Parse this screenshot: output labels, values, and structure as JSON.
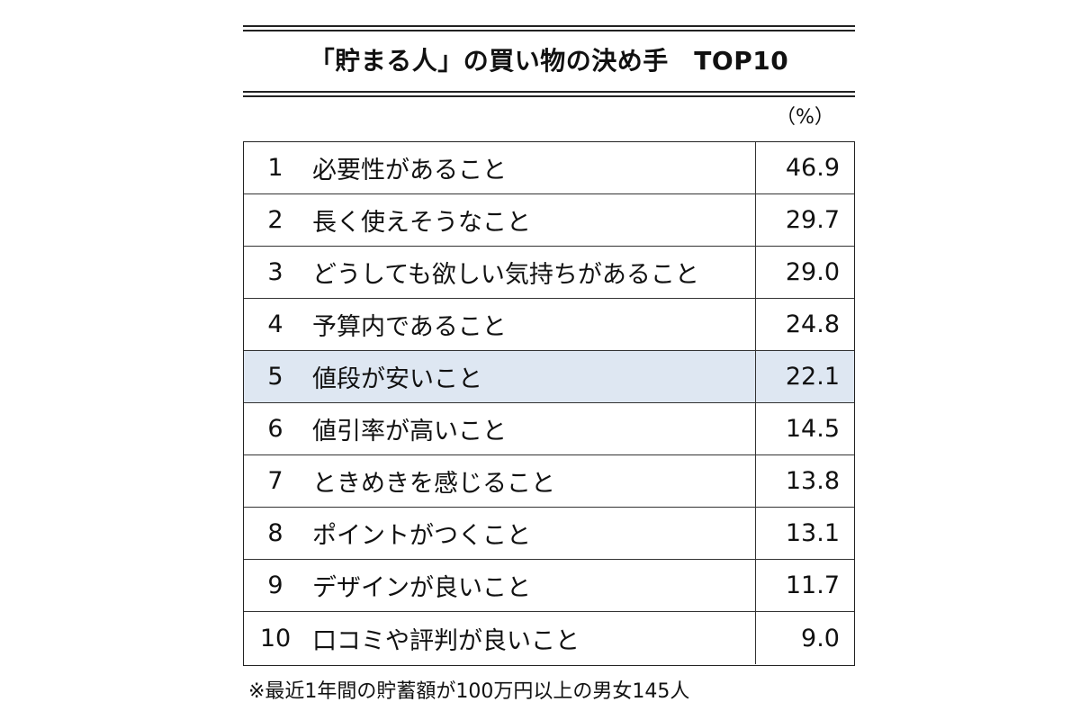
{
  "title": "「貯まる人」の買い物の決め手　TOP10",
  "unit": "（%）",
  "rows": [
    {
      "rank": "1",
      "label": "必要性があること",
      "value": "46.9"
    },
    {
      "rank": "2",
      "label": "長く使えそうなこと",
      "value": "29.7"
    },
    {
      "rank": "3",
      "label": "どうしても欲しい気持ちがあること",
      "value": "29.0"
    },
    {
      "rank": "4",
      "label": "予算内であること",
      "value": "24.8"
    },
    {
      "rank": "5",
      "label": "値段が安いこと",
      "value": "22.1"
    },
    {
      "rank": "6",
      "label": "値引率が高いこと",
      "value": "14.5"
    },
    {
      "rank": "7",
      "label": "ときめきを感じること",
      "value": "13.8"
    },
    {
      "rank": "8",
      "label": "ポイントがつくこと",
      "value": "13.1"
    },
    {
      "rank": "9",
      "label": "デザインが良いこと",
      "value": "11.7"
    },
    {
      "rank": "10",
      "label": "口コミや評判が良いこと",
      "value": "9.0"
    }
  ],
  "highlight_rank": "5",
  "highlight_color": "#dee7f2",
  "footnote": "※最近1年間の貯蓄額が100万円以上の男女145人"
}
